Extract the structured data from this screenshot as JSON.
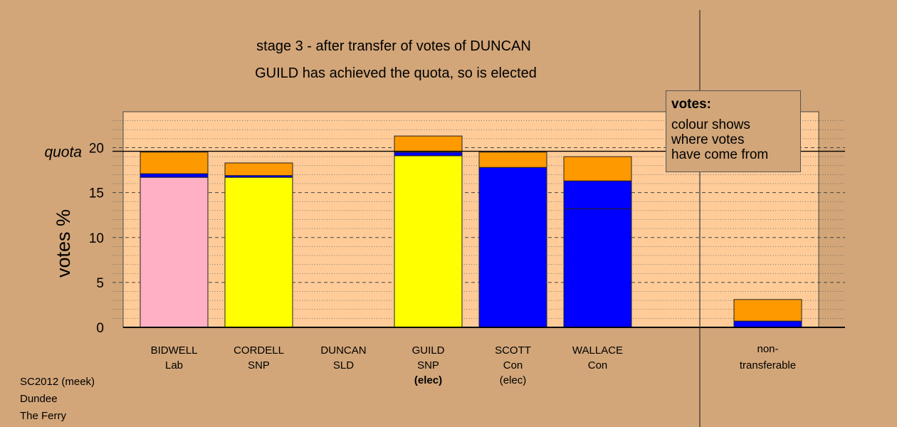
{
  "header": {
    "title": "stage 3 - after transfer of votes of DUNCAN",
    "subtitle": "GUILD has achieved the quota, so is elected"
  },
  "legend": {
    "title": "votes:",
    "body": [
      "colour shows",
      "where votes",
      "have come from"
    ]
  },
  "footer": {
    "line1": "SC2012 (meek)",
    "line2": "Dundee",
    "line3": "The Ferry"
  },
  "colors": {
    "background": "#d2a679",
    "plot_bg": "#ffcc99",
    "lab": "#ffb0c4",
    "snp": "#ffff00",
    "con": "#0000ff",
    "transfer": "#ff9900",
    "sld": "#ffff00"
  },
  "chart_data": {
    "type": "bar",
    "stacked": true,
    "title": "stage 3 - after transfer of votes of DUNCAN",
    "subtitle": "GUILD has achieved the quota, so is elected",
    "ylabel": "votes %",
    "ylim": [
      0,
      24
    ],
    "yticks": [
      0,
      5,
      10,
      15,
      20
    ],
    "quota": 19.6,
    "quota_label": "quota",
    "grid": "dashed at major ticks, dotted at minor ticks",
    "candidates": [
      {
        "name": "BIDWELL",
        "party": "Lab",
        "status": "",
        "segments": [
          {
            "color": "#ffb0c4",
            "value": 16.7
          },
          {
            "color": "#0000ff",
            "value": 0.4
          },
          {
            "color": "#ff9900",
            "value": 2.4
          }
        ]
      },
      {
        "name": "CORDELL",
        "party": "SNP",
        "status": "",
        "segments": [
          {
            "color": "#ffff00",
            "value": 16.7
          },
          {
            "color": "#0000ff",
            "value": 0.2
          },
          {
            "color": "#ff9900",
            "value": 1.4
          }
        ]
      },
      {
        "name": "DUNCAN",
        "party": "SLD",
        "status": "",
        "segments": []
      },
      {
        "name": "GUILD",
        "party": "SNP",
        "status": "(elec)",
        "status_bold": true,
        "segments": [
          {
            "color": "#ffff00",
            "value": 19.1
          },
          {
            "color": "#0000ff",
            "value": 0.4
          },
          {
            "color": "#ff9900",
            "value": 1.8
          }
        ]
      },
      {
        "name": "SCOTT",
        "party": "Con",
        "status": "(elec)",
        "segments": [
          {
            "color": "#0000ff",
            "value": 17.8
          },
          {
            "color": "#ff9900",
            "value": 1.7
          }
        ]
      },
      {
        "name": "WALLACE",
        "party": "Con",
        "status": "",
        "segments": [
          {
            "color": "#0000ff",
            "value": 13.2
          },
          {
            "color": "#0000ff",
            "value": 3.1
          },
          {
            "color": "#ff9900",
            "value": 2.7
          }
        ]
      }
    ],
    "nontransferable": {
      "label1": "non-",
      "label2": "transferable",
      "segments": [
        {
          "color": "#0000ff",
          "value": 0.7
        },
        {
          "color": "#ff9900",
          "value": 2.4
        }
      ]
    }
  }
}
